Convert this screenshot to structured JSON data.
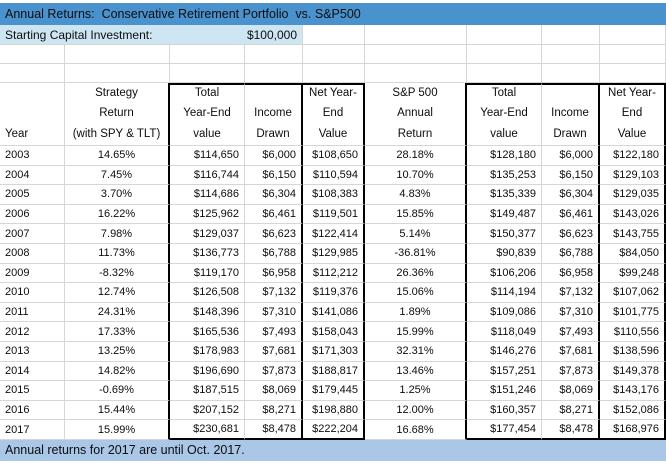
{
  "title": "Annual Returns:  Conservative Retirement Portfolio  vs. S&P500",
  "starting_capital": {
    "label": "Starting Capital Investment:",
    "value": "$100,000"
  },
  "footnote": "Annual returns for 2017 are until Oct. 2017.",
  "colors": {
    "title_bar_bg": "#4a92ce",
    "capital_row_bg": "#cde6f2",
    "footnote_bg": "#aac7e8",
    "gridline": "#d6d6d6",
    "border_black": "#000000",
    "text": "#0d0d0d"
  },
  "table": {
    "headers": [
      {
        "lines": [
          "Year"
        ]
      },
      {
        "lines": [
          "Strategy",
          "Return",
          "(with SPY & TLT)"
        ]
      },
      {
        "lines": [
          "Total",
          "Year-End",
          "value"
        ]
      },
      {
        "lines": [
          "Income",
          "Drawn"
        ]
      },
      {
        "lines": [
          "Net Year-",
          "End",
          "Value"
        ]
      },
      {
        "lines": [
          "S&P 500",
          "Annual",
          "Return"
        ]
      },
      {
        "lines": [
          "Total",
          "Year-End",
          "value"
        ]
      },
      {
        "lines": [
          "Income",
          "Drawn"
        ]
      },
      {
        "lines": [
          "Net Year-",
          "End",
          "Value"
        ]
      }
    ],
    "rows": [
      [
        "2003",
        "14.65%",
        "$114,650",
        "$6,000",
        "$108,650",
        "28.18%",
        "$128,180",
        "$6,000",
        "$122,180"
      ],
      [
        "2004",
        "7.45%",
        "$116,744",
        "$6,150",
        "$110,594",
        "10.70%",
        "$135,253",
        "$6,150",
        "$129,103"
      ],
      [
        "2005",
        "3.70%",
        "$114,686",
        "$6,304",
        "$108,383",
        "4.83%",
        "$135,339",
        "$6,304",
        "$129,035"
      ],
      [
        "2006",
        "16.22%",
        "$125,962",
        "$6,461",
        "$119,501",
        "15.85%",
        "$149,487",
        "$6,461",
        "$143,026"
      ],
      [
        "2007",
        "7.98%",
        "$129,037",
        "$6,623",
        "$122,414",
        "5.14%",
        "$150,377",
        "$6,623",
        "$143,755"
      ],
      [
        "2008",
        "11.73%",
        "$136,773",
        "$6,788",
        "$129,985",
        "-36.81%",
        "$90,839",
        "$6,788",
        "$84,050"
      ],
      [
        "2009",
        "-8.32%",
        "$119,170",
        "$6,958",
        "$112,212",
        "26.36%",
        "$106,206",
        "$6,958",
        "$99,248"
      ],
      [
        "2010",
        "12.74%",
        "$126,508",
        "$7,132",
        "$119,376",
        "15.06%",
        "$114,194",
        "$7,132",
        "$107,062"
      ],
      [
        "2011",
        "24.31%",
        "$148,396",
        "$7,310",
        "$141,086",
        "1.89%",
        "$109,086",
        "$7,310",
        "$101,775"
      ],
      [
        "2012",
        "17.33%",
        "$165,536",
        "$7,493",
        "$158,043",
        "15.99%",
        "$118,049",
        "$7,493",
        "$110,556"
      ],
      [
        "2013",
        "13.25%",
        "$178,983",
        "$7,681",
        "$171,303",
        "32.31%",
        "$146,276",
        "$7,681",
        "$138,596"
      ],
      [
        "2014",
        "14.82%",
        "$196,690",
        "$7,873",
        "$188,817",
        "13.46%",
        "$157,251",
        "$7,873",
        "$149,378"
      ],
      [
        "2015",
        "-0.69%",
        "$187,515",
        "$8,069",
        "$179,445",
        "1.25%",
        "$151,246",
        "$8,069",
        "$143,176"
      ],
      [
        "2016",
        "15.44%",
        "$207,152",
        "$8,271",
        "$198,880",
        "12.00%",
        "$160,357",
        "$8,271",
        "$152,086"
      ],
      [
        "2017",
        "15.99%",
        "$230,681",
        "$8,478",
        "$222,204",
        "16.68%",
        "$177,454",
        "$8,478",
        "$168,976"
      ]
    ]
  }
}
